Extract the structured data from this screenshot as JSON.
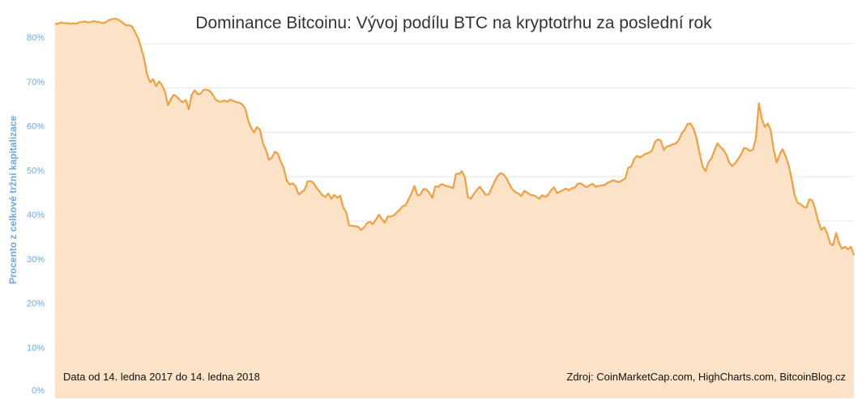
{
  "chart_data": {
    "type": "area",
    "title": "Dominance Bitcoinu: Vývoj podílu BTC na kryptotrhu za poslední rok",
    "ylabel": "Procento z celkové tržní kapitalizace",
    "xlabel": "",
    "ylim": [
      0,
      85
    ],
    "y_ticks": [
      "0%",
      "10%",
      "20%",
      "30%",
      "40%",
      "50%",
      "60%",
      "70%",
      "80%"
    ],
    "grid": true,
    "x_start": "2017-01-14",
    "x_end": "2018-01-14",
    "series": [
      {
        "values": [
          84.5,
          84.5,
          84.8,
          84.6,
          84.7,
          84.5,
          84.6,
          84.5,
          84.8,
          84.9,
          85.0,
          84.8,
          84.9,
          85.1,
          84.9,
          84.9,
          84.6,
          84.8,
          85.3,
          85.5,
          85.7,
          85.5,
          85.1,
          84.6,
          84.1,
          84.2,
          83.8,
          82.5,
          81.2,
          79.0,
          76.5,
          73.0,
          71.3,
          72.0,
          70.4,
          71.5,
          70.6,
          69.2,
          66.1,
          67.5,
          68.5,
          68.0,
          67.3,
          66.8,
          67.3,
          65.2,
          68.4,
          69.5,
          68.6,
          68.7,
          69.6,
          69.6,
          69.4,
          68.6,
          67.4,
          67.0,
          66.9,
          67.2,
          66.9,
          67.4,
          67.1,
          66.8,
          66.7,
          66.3,
          65.4,
          62.7,
          61.0,
          60.0,
          61.2,
          60.6,
          57.5,
          56.1,
          53.8,
          54.3,
          55.6,
          55.2,
          53.3,
          52.0,
          49.1,
          48.2,
          48.5,
          47.8,
          46.0,
          46.5,
          47.0,
          48.9,
          49.0,
          48.6,
          47.5,
          46.7,
          45.8,
          45.4,
          46.2,
          45.0,
          45.9,
          45.2,
          45.7,
          43.1,
          42.0,
          39.0,
          38.9,
          38.8,
          38.7,
          38.0,
          38.5,
          39.5,
          39.8,
          39.3,
          40.3,
          41.4,
          40.5,
          39.6,
          41.0,
          41.0,
          41.2,
          41.9,
          42.5,
          43.3,
          43.5,
          44.9,
          46.2,
          47.9,
          45.8,
          45.9,
          47.2,
          47.1,
          46.4,
          45.2,
          47.8,
          47.7,
          48.3,
          48.1,
          47.8,
          47.7,
          47.4,
          50.6,
          50.6,
          51.2,
          49.8,
          45.4,
          45.0,
          46.1,
          47.0,
          47.7,
          46.8,
          45.9,
          46.0,
          47.4,
          48.9,
          50.1,
          50.8,
          50.5,
          49.6,
          48.3,
          47.1,
          46.5,
          46.2,
          45.6,
          46.8,
          46.4,
          45.9,
          45.8,
          45.5,
          45.0,
          45.8,
          45.4,
          45.9,
          46.9,
          47.6,
          46.3,
          46.6,
          47.0,
          47.3,
          46.9,
          47.4,
          47.5,
          48.4,
          48.5,
          48.0,
          47.6,
          48.1,
          48.4,
          47.7,
          47.9,
          48.0,
          48.1,
          48.6,
          48.9,
          49.2,
          48.9,
          48.8,
          49.2,
          49.6,
          52.0,
          52.3,
          54.0,
          54.7,
          54.3,
          54.8,
          55.2,
          55.4,
          55.9,
          57.8,
          58.4,
          58.1,
          56.0,
          56.8,
          57.0,
          57.3,
          57.5,
          58.2,
          59.7,
          60.6,
          61.9,
          62.0,
          60.8,
          58.7,
          55.4,
          52.4,
          51.2,
          53.2,
          54.1,
          55.8,
          57.5,
          56.7,
          56.1,
          55.0,
          53.2,
          52.4,
          53.0,
          54.0,
          55.0,
          56.5,
          56.3,
          55.8,
          56.1,
          58.7,
          66.6,
          63.0,
          61.2,
          62.0,
          60.4,
          56.0,
          53.2,
          55.0,
          56.2,
          54.6,
          52.6,
          49.6,
          45.9,
          44.1,
          43.8,
          43.2,
          43.0,
          44.9,
          44.6,
          42.6,
          39.9,
          38.0,
          38.6,
          37.2,
          34.9,
          34.5,
          37.3,
          35.0,
          33.7,
          34.2,
          33.6,
          34.2,
          32.3
        ]
      }
    ],
    "colors": {
      "line": "#f0a042",
      "fill": "#fce3c8",
      "grid": "#e6e6e6"
    },
    "annotations": {
      "left": "Data od 14. ledna 2017 do 14. ledna 2018",
      "right": "Zdroj: CoinMarketCap.com, HighCharts.com, BitcoinBlog.cz"
    }
  }
}
